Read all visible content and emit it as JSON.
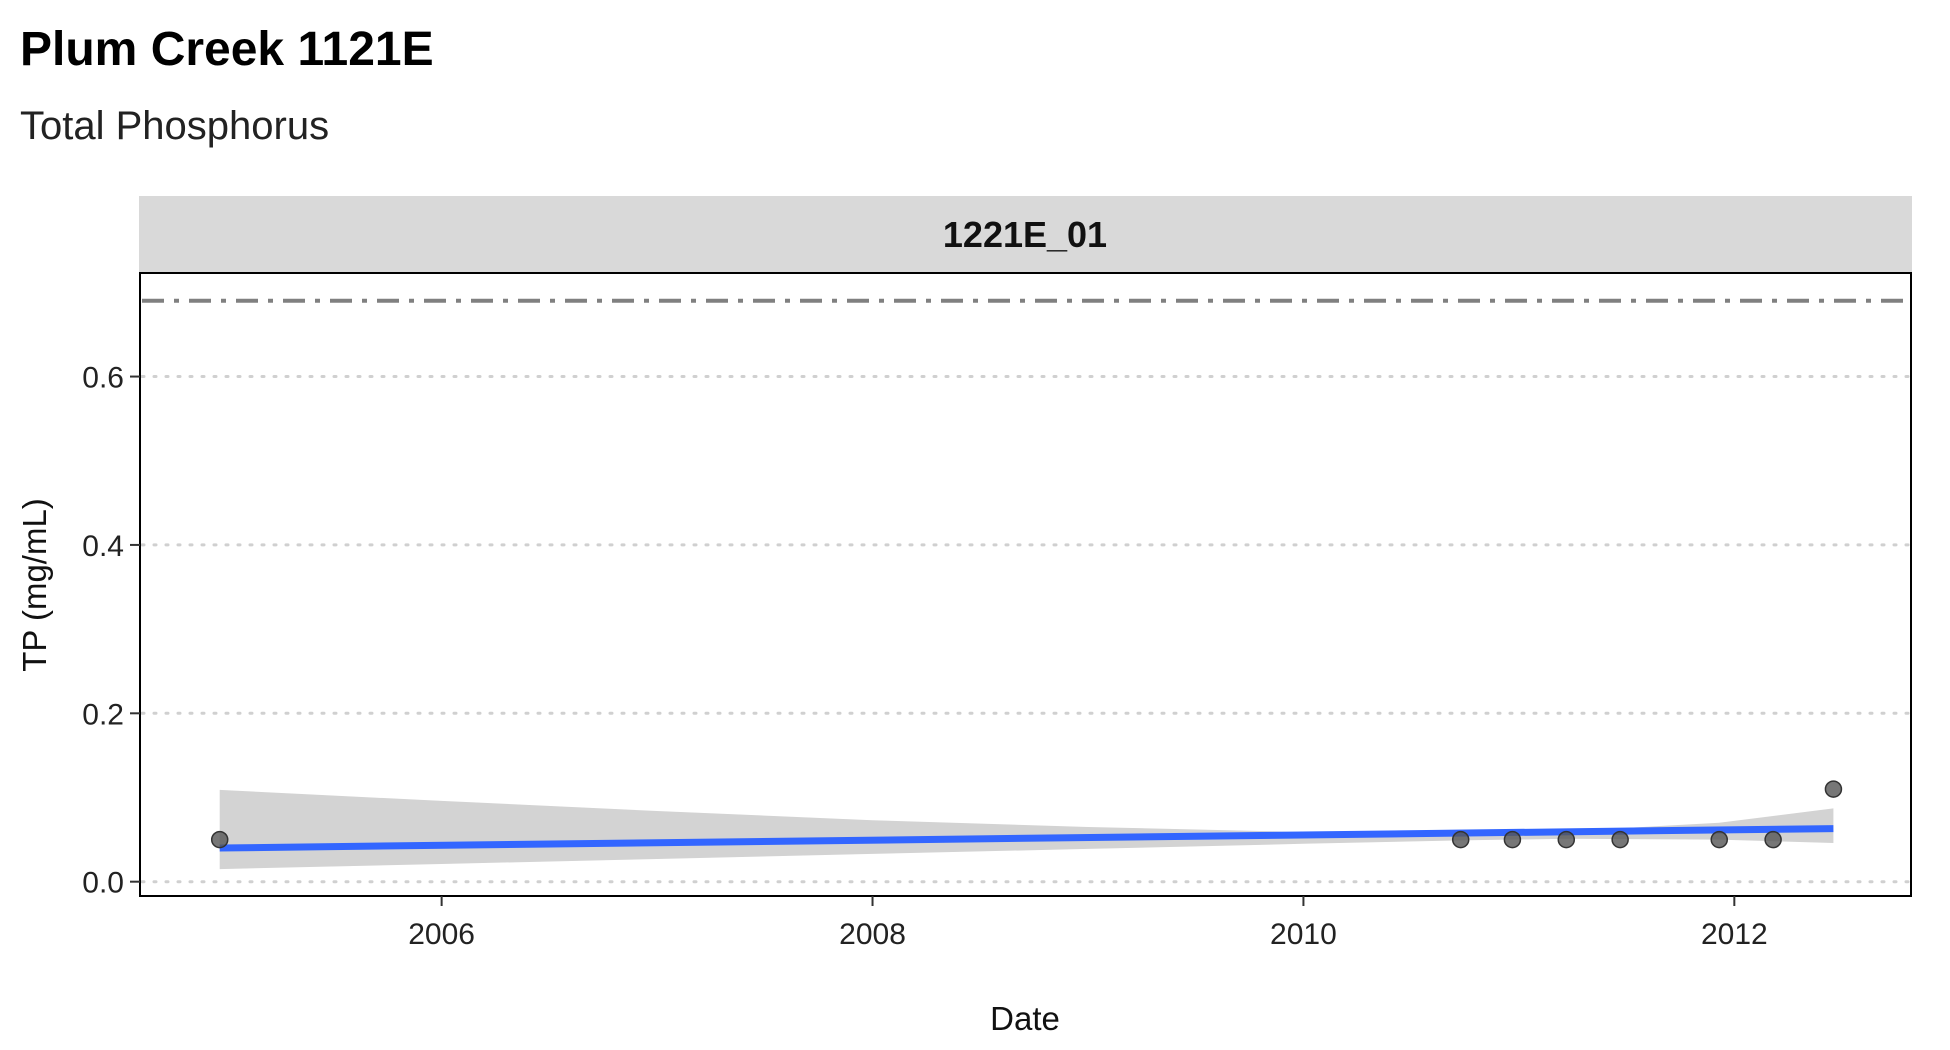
{
  "title": "Plum Creek 1121E",
  "subtitle": "Total Phosphorus",
  "chart_data": {
    "type": "scatter",
    "facet_label": "1221E_01",
    "xlabel": "Date",
    "ylabel": "TP (mg/mL)",
    "xlim": [
      2004.6,
      2012.82
    ],
    "ylim": [
      -0.017,
      0.723
    ],
    "x_ticks": [
      2006,
      2008,
      2010,
      2012
    ],
    "x_tick_labels": [
      "2006",
      "2008",
      "2010",
      "2012"
    ],
    "y_ticks": [
      0.0,
      0.2,
      0.4,
      0.6
    ],
    "y_tick_labels": [
      "0.0",
      "0.2",
      "0.4",
      "0.6"
    ],
    "grid": "horizontal-dotted",
    "reference_line": {
      "y": 0.69,
      "style": "dash-dot",
      "color": "#808080"
    },
    "points": {
      "color": "#555555",
      "x": [
        2004.97,
        2010.73,
        2010.97,
        2011.22,
        2011.47,
        2011.93,
        2012.18,
        2012.46
      ],
      "y": [
        0.05,
        0.05,
        0.05,
        0.05,
        0.05,
        0.05,
        0.05,
        0.11
      ]
    },
    "trend": {
      "color": "#3366FF",
      "x": [
        2004.97,
        2012.46
      ],
      "y": [
        0.04,
        0.063
      ]
    },
    "confidence_band": {
      "color": "#d3d3d3",
      "x": [
        2004.97,
        2006.0,
        2007.0,
        2008.0,
        2009.0,
        2010.0,
        2010.73,
        2011.22,
        2011.93,
        2012.46
      ],
      "lower": [
        0.015,
        0.021,
        0.027,
        0.033,
        0.039,
        0.045,
        0.049,
        0.051,
        0.05,
        0.046
      ],
      "upper": [
        0.109,
        0.096,
        0.084,
        0.073,
        0.065,
        0.059,
        0.058,
        0.06,
        0.07,
        0.087
      ]
    }
  }
}
